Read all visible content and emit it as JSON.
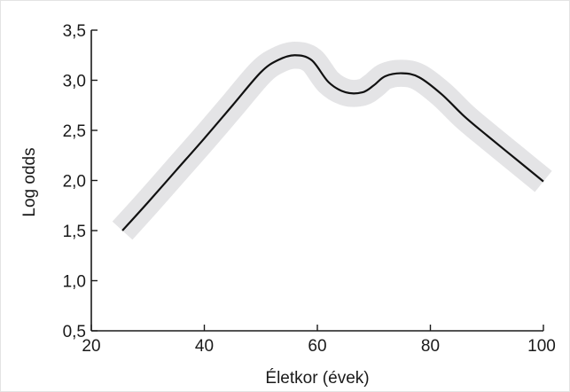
{
  "chart_data": {
    "type": "line",
    "title": "",
    "xlabel": "Életkor (évek)",
    "ylabel": "Log odds",
    "xlim": [
      20,
      100
    ],
    "ylim": [
      0.5,
      3.5
    ],
    "x_ticks": [
      20,
      40,
      60,
      80,
      100
    ],
    "x_tick_labels": [
      "20",
      "40",
      "60",
      "80",
      "100"
    ],
    "y_ticks": [
      0.5,
      1.0,
      1.5,
      2.0,
      2.5,
      3.0,
      3.5
    ],
    "y_tick_labels": [
      "0,5",
      "1,0",
      "1,5",
      "2,0",
      "2,5",
      "3,0",
      "3,5"
    ],
    "grid": false,
    "band_color": "#e4e4e6",
    "line_color": "#111111",
    "series": [
      {
        "x": [
          25.5,
          30,
          35,
          40,
          45,
          50,
          53,
          56,
          59,
          62,
          65,
          68,
          70,
          72,
          75,
          78,
          82,
          86,
          90,
          95,
          100
        ],
        "y": [
          1.5,
          1.78,
          2.1,
          2.42,
          2.75,
          3.08,
          3.2,
          3.25,
          3.2,
          2.98,
          2.88,
          2.88,
          2.95,
          3.04,
          3.07,
          3.03,
          2.86,
          2.64,
          2.45,
          2.22,
          1.99
        ],
        "band_width": 0.27
      }
    ]
  }
}
